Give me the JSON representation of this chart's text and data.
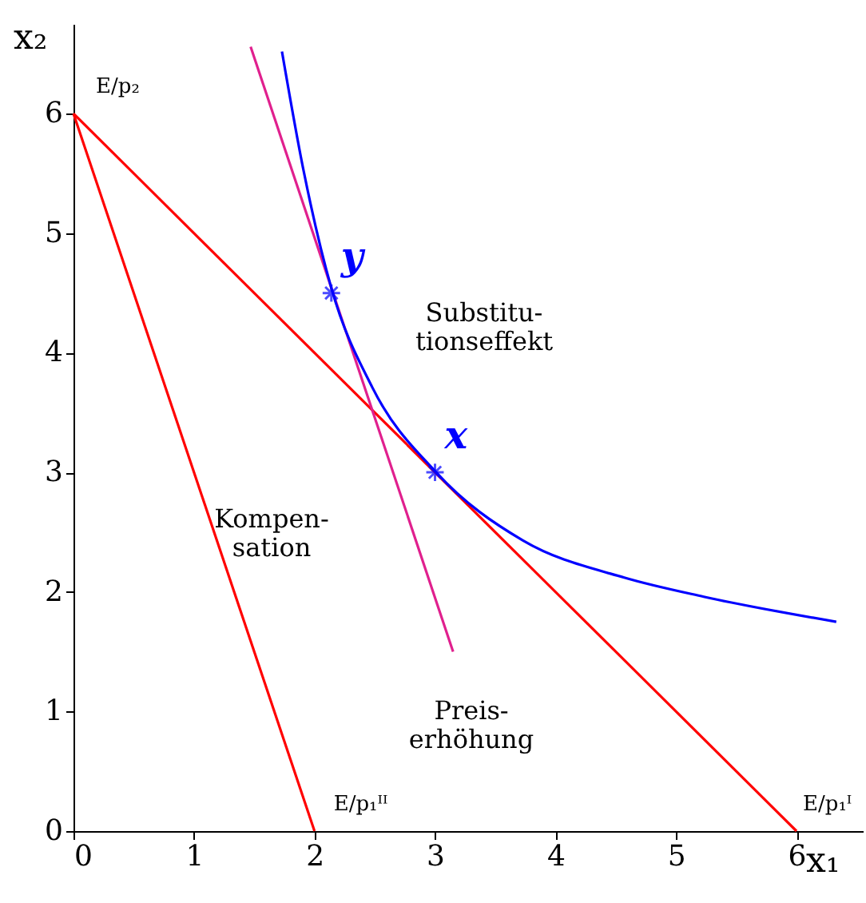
{
  "chart_data": {
    "type": "line",
    "xlabel": "x₁",
    "ylabel": "x₂",
    "xlim": [
      0,
      6.55
    ],
    "ylim": [
      0,
      6.75
    ],
    "xticks": [
      0,
      1,
      2,
      3,
      4,
      5,
      6
    ],
    "yticks": [
      0,
      1,
      2,
      3,
      4,
      5,
      6
    ],
    "grid": false,
    "line_style": "solid",
    "series": [
      {
        "color": "#ff0000",
        "x": [
          0,
          6
        ],
        "values": [
          6,
          0
        ]
      },
      {
        "color": "#ff0000",
        "x": [
          0,
          2
        ],
        "values": [
          6,
          0
        ]
      },
      {
        "color": "#e0208e",
        "x": [
          1.47,
          3.15
        ],
        "values": [
          6.56,
          1.5
        ]
      },
      {
        "color": "#0000ff",
        "x": [
          1.73,
          1.91,
          2.14,
          2.48,
          3.01,
          3.73,
          4.57,
          5.23,
          6.33
        ],
        "values": [
          6.52,
          5.52,
          4.54,
          3.71,
          3.0,
          2.43,
          2.12,
          1.96,
          1.75
        ]
      },
      {
        "type": "scatter",
        "marker": "cross",
        "color": "#0000ff",
        "x": [
          2.14,
          3.0
        ],
        "values": [
          4.5,
          3.0
        ]
      }
    ],
    "annotations": [
      {
        "text": "y",
        "x": 2.14,
        "y": 4.5
      },
      {
        "text": "x",
        "x": 3.0,
        "y": 3.0
      },
      {
        "text": "E/p₂",
        "x": 0,
        "y": 6
      },
      {
        "text": "E/p₁ᴵᴵ",
        "x": 2,
        "y": 0
      },
      {
        "text": "E/p₁ᴵ",
        "x": 6,
        "y": 0
      },
      "Substitu-\ntionseffekt",
      "Kompen-\nsation",
      "Preis-\nerhöhung"
    ]
  }
}
